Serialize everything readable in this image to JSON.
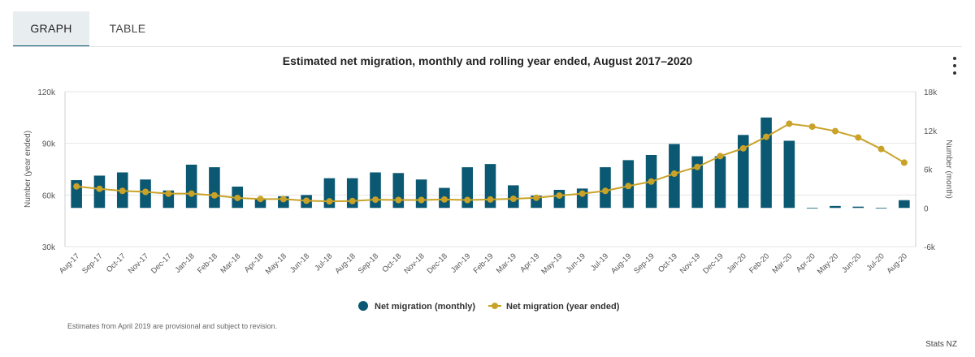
{
  "tabs": [
    {
      "label": "GRAPH",
      "active": true
    },
    {
      "label": "TABLE",
      "active": false
    }
  ],
  "menu_icon": "more-vertical-icon",
  "footnote": "Estimates from April 2019 are provisional and subject to revision.",
  "source": "Stats NZ",
  "colors": {
    "bar": "#0b5872",
    "line": "#c9a227",
    "grid": "#e6e6e6"
  },
  "chart_data": {
    "type": "bar+line",
    "title": "Estimated net migration, monthly and rolling year ended, August 2017–2020",
    "categories": [
      "Aug-17",
      "Sep-17",
      "Oct-17",
      "Nov-17",
      "Dec-17",
      "Jan-18",
      "Feb-18",
      "Mar-18",
      "Apr-18",
      "May-18",
      "Jun-18",
      "Jul-18",
      "Aug-18",
      "Sep-18",
      "Oct-18",
      "Nov-18",
      "Dec-18",
      "Jan-19",
      "Feb-19",
      "Mar-19",
      "Apr-19",
      "May-19",
      "Jun-19",
      "Jul-19",
      "Aug-19",
      "Sep-19",
      "Oct-19",
      "Nov-19",
      "Dec-19",
      "Jan-20",
      "Feb-20",
      "Mar-20",
      "Apr-20",
      "May-20",
      "Jun-20",
      "Jul-20",
      "Aug-20"
    ],
    "y_left": {
      "label": "Number (year ended)",
      "range": [
        30000,
        120000
      ],
      "ticks": [
        "30k",
        "60k",
        "90k",
        "120k"
      ],
      "tick_values": [
        30000,
        60000,
        90000,
        120000
      ]
    },
    "y_right": {
      "label": "Number (month)",
      "range": [
        -6000,
        18000
      ],
      "ticks": [
        "-6k",
        "0",
        "6k",
        "12k",
        "18k"
      ],
      "tick_values": [
        -6000,
        0,
        6000,
        12000,
        18000
      ]
    },
    "grid": true,
    "legend_position": "bottom",
    "series": [
      {
        "name": "Net migration (monthly)",
        "type": "bar",
        "axis": "right",
        "values": [
          4300,
          5000,
          5500,
          4400,
          2700,
          6700,
          6300,
          3300,
          1400,
          1800,
          2000,
          4600,
          4600,
          5500,
          5400,
          4400,
          3100,
          6300,
          6800,
          3500,
          1900,
          2800,
          3000,
          6300,
          7400,
          8200,
          9900,
          8000,
          8000,
          11300,
          14000,
          10400,
          0,
          300,
          200,
          0,
          1200
        ]
      },
      {
        "name": "Net migration (year ended)",
        "type": "line",
        "axis": "left",
        "values": [
          65000,
          63600,
          62400,
          61800,
          60800,
          60800,
          59800,
          58300,
          57700,
          57600,
          56700,
          56300,
          56500,
          57300,
          57100,
          57100,
          57400,
          57100,
          57400,
          57800,
          58400,
          59700,
          60800,
          62400,
          65200,
          67800,
          72400,
          76300,
          82600,
          87100,
          93800,
          101400,
          99700,
          97100,
          93400,
          86700,
          78800
        ]
      }
    ]
  }
}
